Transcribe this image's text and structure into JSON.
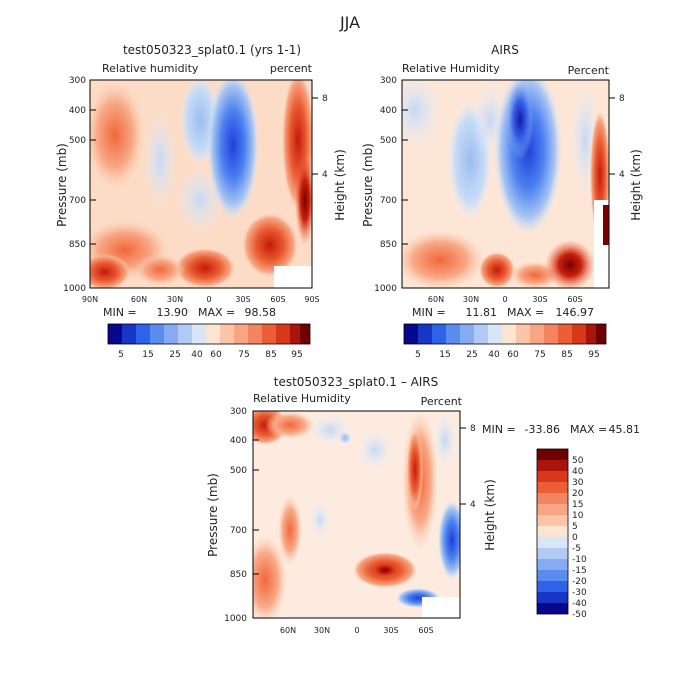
{
  "figure": {
    "title": "JJA"
  },
  "colors": {
    "deep_blue": "#08088c",
    "mid_blue": "#3366ee",
    "light_blue": "#cfe0f7",
    "white": "#ffffff",
    "peach": "#fbd0b5",
    "orange": "#f26a3c",
    "red": "#c8140a",
    "dark_red": "#6e0000"
  },
  "chart_data": [
    {
      "type": "heatmap",
      "title": "test050323_splat0.1 (yrs 1-1)",
      "left_label": "Relative humidity",
      "right_label": "percent",
      "ylabel": "Pressure (mb)",
      "y2label": "Height (km)",
      "yticks": [
        "300",
        "400",
        "500",
        "700",
        "850",
        "1000"
      ],
      "y2ticks": [
        "8",
        "4"
      ],
      "xticks": [
        "90N",
        "60N",
        "30N",
        "0",
        "30S",
        "60S",
        "90S"
      ],
      "min_label": "MIN =",
      "min": "13.90",
      "max_label": "MAX =",
      "max": "98.58",
      "colorbar_labels": [
        "5",
        "15",
        "25",
        "40",
        "60",
        "75",
        "85",
        "95"
      ]
    },
    {
      "type": "heatmap",
      "title": "AIRS",
      "left_label": "Relative Humidity",
      "right_label": "Percent",
      "ylabel": "Pressure (mb)",
      "y2label": "Height (km)",
      "yticks": [
        "300",
        "400",
        "500",
        "700",
        "850",
        "1000"
      ],
      "y2ticks": [
        "8",
        "4"
      ],
      "xticks": [
        "60N",
        "30N",
        "0",
        "30S",
        "60S"
      ],
      "min_label": "MIN =",
      "min": "11.81",
      "max_label": "MAX =",
      "max": "146.97",
      "colorbar_labels": [
        "5",
        "15",
        "25",
        "40",
        "60",
        "75",
        "85",
        "95"
      ]
    },
    {
      "type": "heatmap",
      "title": "test050323_splat0.1 – AIRS",
      "left_label": "Relative Humidity",
      "right_label": "Percent",
      "ylabel": "Pressure (mb)",
      "y2label": "Height (km)",
      "yticks": [
        "300",
        "400",
        "500",
        "700",
        "850",
        "1000"
      ],
      "y2ticks": [
        "8",
        "4"
      ],
      "xticks": [
        "60N",
        "30N",
        "0",
        "30S",
        "60S"
      ],
      "min_label": "MIN =",
      "min": "-33.86",
      "max_label": "MAX =",
      "max": "45.81",
      "colorbar_labels": [
        "50",
        "40",
        "30",
        "20",
        "15",
        "10",
        "5",
        "0",
        "-5",
        "-10",
        "-15",
        "-20",
        "-30",
        "-40",
        "-50"
      ]
    }
  ]
}
